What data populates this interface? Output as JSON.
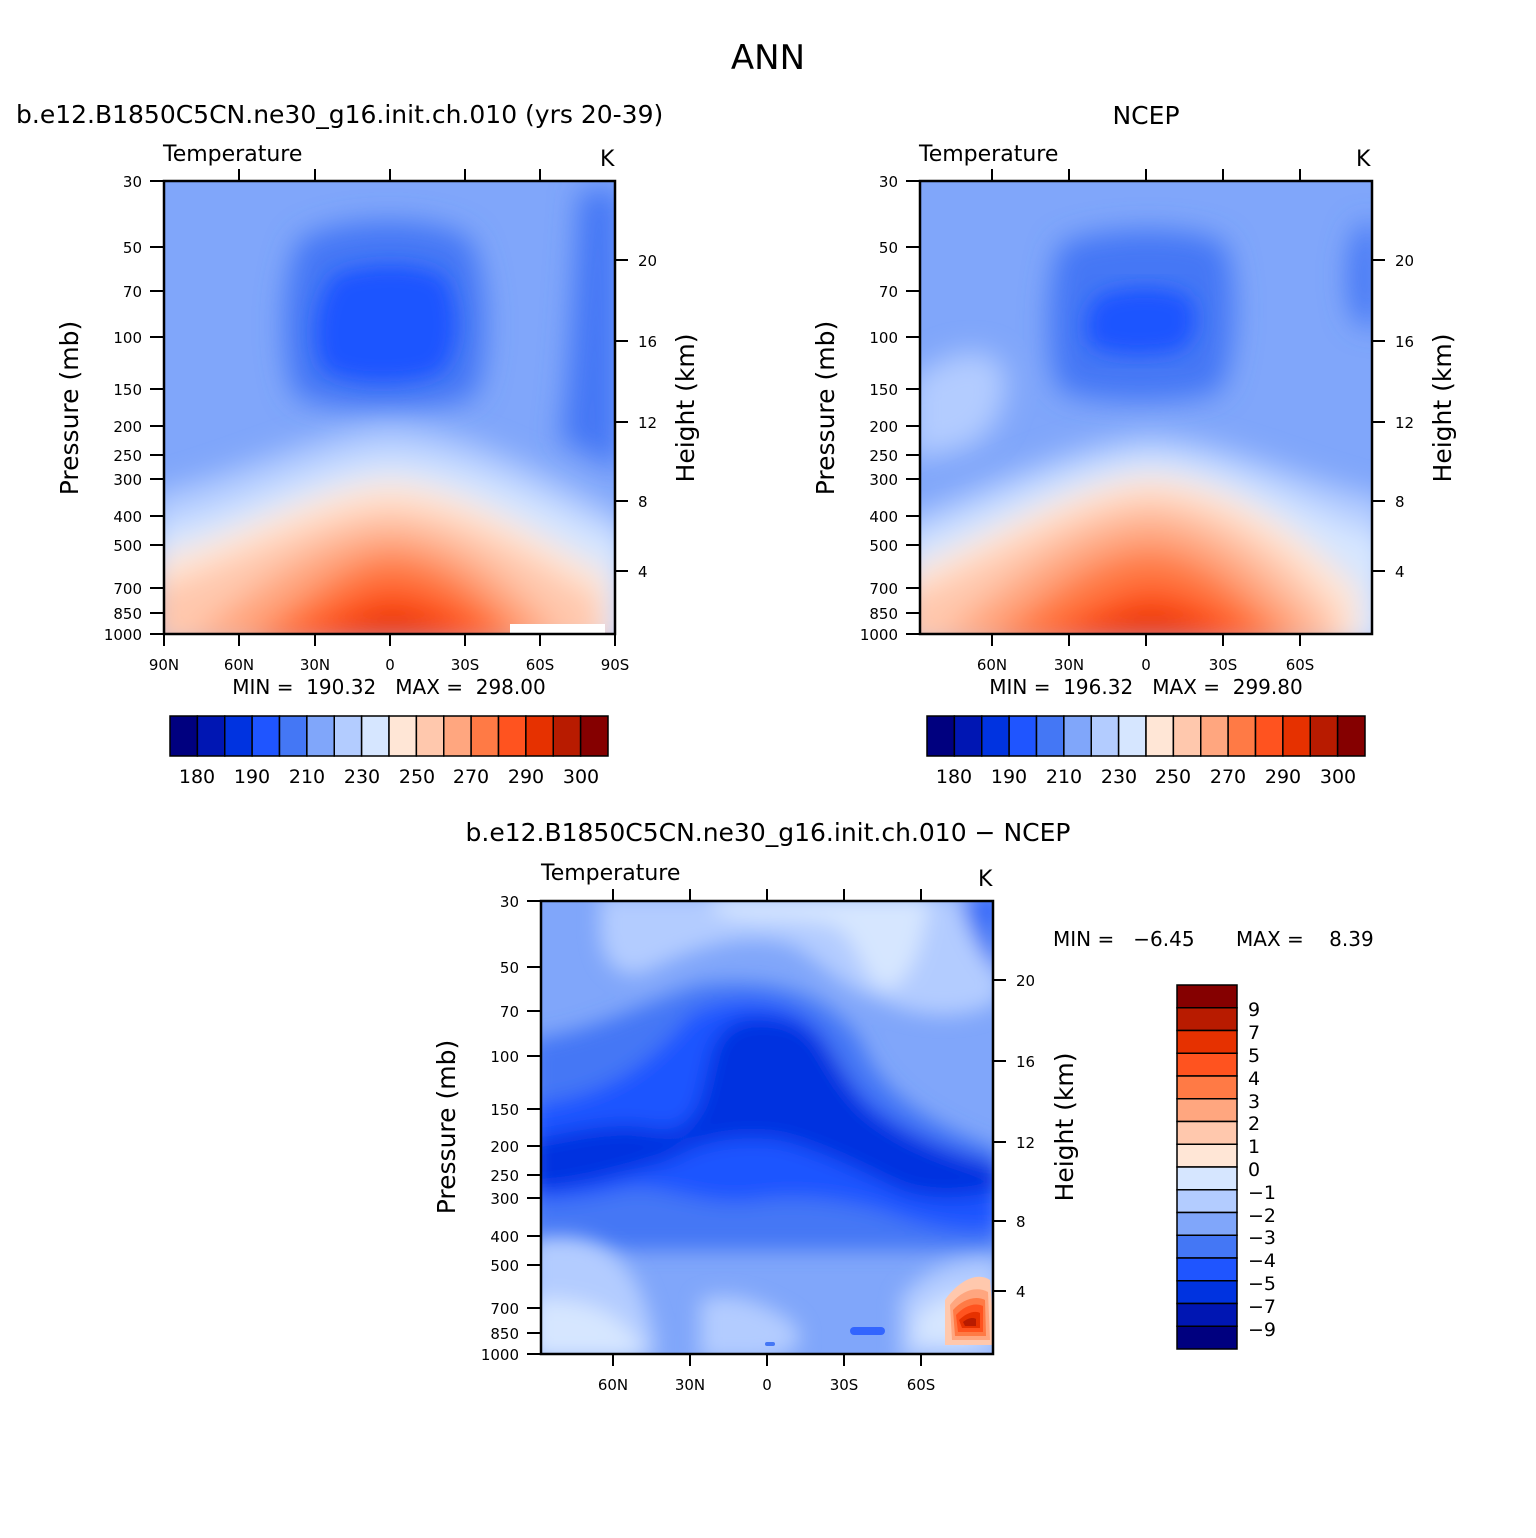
{
  "figure_title": "ANN",
  "palette_temp": [
    "#00007f",
    "#0016b3",
    "#0033e0",
    "#1f55ff",
    "#4477f5",
    "#80a6fa",
    "#b3ccff",
    "#d6e6ff",
    "#ffe6d6",
    "#ffc8ad",
    "#ffa67f",
    "#ff7a45",
    "#ff531f",
    "#e63100",
    "#b81b00",
    "#850000"
  ],
  "palette_diff": [
    "#00007f",
    "#0016b3",
    "#0033e0",
    "#1f55ff",
    "#4477f5",
    "#80a6fa",
    "#b3ccff",
    "#d6e6ff",
    "#ffe6d6",
    "#ffc8ad",
    "#ffa67f",
    "#ff7a45",
    "#ff531f",
    "#e63100",
    "#b81b00",
    "#850000"
  ],
  "panels": [
    {
      "title": "b.e12.B1850C5CN.ne30_g16.init.ch.010 (yrs 20-39)",
      "left_label": "Temperature",
      "right_label": "K",
      "x_ticks": [
        "90N",
        "60N",
        "30N",
        "0",
        "30S",
        "60S",
        "90S"
      ],
      "stats": "MIN =  190.32   MAX =  298.00",
      "colorbar_labels": [
        "180",
        "190",
        "210",
        "230",
        "250",
        "270",
        "290",
        "300"
      ]
    },
    {
      "title": "NCEP",
      "left_label": "Temperature",
      "right_label": "K",
      "x_ticks": [
        "60N",
        "30N",
        "0",
        "30S",
        "60S"
      ],
      "stats": "MIN =  196.32   MAX =  299.80",
      "colorbar_labels": [
        "180",
        "190",
        "210",
        "230",
        "250",
        "270",
        "290",
        "300"
      ]
    },
    {
      "title": "b.e12.B1850C5CN.ne30_g16.init.ch.010 − NCEP",
      "left_label": "Temperature",
      "right_label": "K",
      "x_ticks": [
        "60N",
        "30N",
        "0",
        "30S",
        "60S"
      ],
      "stats_min": "MIN =   −6.45",
      "stats_max": "MAX =    8.39",
      "colorbar_labels": [
        "9",
        "7",
        "5",
        "4",
        "3",
        "2",
        "1",
        "0",
        "−1",
        "−2",
        "−3",
        "−4",
        "−5",
        "−7",
        "−9"
      ]
    }
  ],
  "y_axis": {
    "label": "Pressure (mb)",
    "ticks": [
      "30",
      "50",
      "70",
      "100",
      "150",
      "200",
      "250",
      "300",
      "400",
      "500",
      "700",
      "850",
      "1000"
    ]
  },
  "y2_axis": {
    "label": "Height (km)",
    "ticks": [
      "20",
      "16",
      "12",
      "8",
      "4"
    ]
  },
  "chart_data": [
    {
      "type": "heatmap",
      "title": "b.e12.B1850C5CN.ne30_g16.init.ch.010 (yrs 20-39)",
      "ylabel": "Pressure (mb)",
      "y2label": "Height (km)",
      "x": [
        "90N",
        "60N",
        "30N",
        "0",
        "30S",
        "60S",
        "90S"
      ],
      "y": [
        30,
        50,
        70,
        100,
        150,
        200,
        250,
        300,
        400,
        500,
        700,
        850,
        1000
      ],
      "zmin": 190.32,
      "zmax": 298.0,
      "units": "K",
      "levels": [
        180,
        190,
        210,
        230,
        250,
        270,
        290,
        300
      ]
    },
    {
      "type": "heatmap",
      "title": "NCEP",
      "ylabel": "Pressure (mb)",
      "y2label": "Height (km)",
      "x": [
        "60N",
        "30N",
        "0",
        "30S",
        "60S"
      ],
      "y": [
        30,
        50,
        70,
        100,
        150,
        200,
        250,
        300,
        400,
        500,
        700,
        850,
        1000
      ],
      "zmin": 196.32,
      "zmax": 299.8,
      "units": "K",
      "levels": [
        180,
        190,
        210,
        230,
        250,
        270,
        290,
        300
      ]
    },
    {
      "type": "heatmap",
      "title": "b.e12.B1850C5CN.ne30_g16.init.ch.010 − NCEP",
      "ylabel": "Pressure (mb)",
      "y2label": "Height (km)",
      "x": [
        "60N",
        "30N",
        "0",
        "30S",
        "60S"
      ],
      "y": [
        30,
        50,
        70,
        100,
        150,
        200,
        250,
        300,
        400,
        500,
        700,
        850,
        1000
      ],
      "zmin": -6.45,
      "zmax": 8.39,
      "units": "K",
      "levels": [
        9,
        7,
        5,
        4,
        3,
        2,
        1,
        0,
        -1,
        -2,
        -3,
        -4,
        -5,
        -7,
        -9
      ]
    }
  ]
}
